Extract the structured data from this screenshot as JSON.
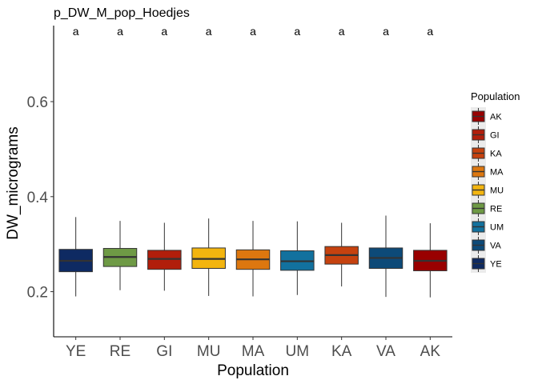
{
  "chart_data": {
    "type": "boxplot",
    "title": "p_DW_M_pop_Hoedjes",
    "xlabel": "Population",
    "ylabel": "DW_micrograms",
    "ylim": [
      0.105,
      0.76
    ],
    "yticks": [
      0.2,
      0.4,
      0.6
    ],
    "yticks_text": [
      "0.2",
      "0.4",
      "0.6"
    ],
    "grid": false,
    "legend": {
      "title": "Population",
      "placement": "right",
      "entries": [
        {
          "label": "AK",
          "color": "#990000"
        },
        {
          "label": "GI",
          "color": "#b11e0b"
        },
        {
          "label": "KA",
          "color": "#c6420f"
        },
        {
          "label": "MA",
          "color": "#dd770f"
        },
        {
          "label": "MU",
          "color": "#f3b50f"
        },
        {
          "label": "RE",
          "color": "#6e9a45"
        },
        {
          "label": "UM",
          "color": "#12719e"
        },
        {
          "label": "VA",
          "color": "#0d4a78"
        },
        {
          "label": "YE",
          "color": "#0e2a62"
        }
      ]
    },
    "categories": [
      "YE",
      "RE",
      "GI",
      "MU",
      "MA",
      "UM",
      "KA",
      "VA",
      "AK"
    ],
    "boxes": [
      {
        "category": "YE",
        "min": 0.19,
        "q1": 0.242,
        "median": 0.265,
        "q3": 0.289,
        "max": 0.357,
        "color": "#0e2a62",
        "letter": "a"
      },
      {
        "category": "RE",
        "min": 0.203,
        "q1": 0.253,
        "median": 0.273,
        "q3": 0.291,
        "max": 0.349,
        "color": "#6e9a45",
        "letter": "a"
      },
      {
        "category": "GI",
        "min": 0.202,
        "q1": 0.247,
        "median": 0.269,
        "q3": 0.287,
        "max": 0.345,
        "color": "#b11e0b",
        "letter": "a"
      },
      {
        "category": "MU",
        "min": 0.191,
        "q1": 0.249,
        "median": 0.269,
        "q3": 0.292,
        "max": 0.354,
        "color": "#f3b50f",
        "letter": "a"
      },
      {
        "category": "MA",
        "min": 0.19,
        "q1": 0.247,
        "median": 0.268,
        "q3": 0.288,
        "max": 0.349,
        "color": "#dd770f",
        "letter": "a"
      },
      {
        "category": "UM",
        "min": 0.193,
        "q1": 0.245,
        "median": 0.264,
        "q3": 0.286,
        "max": 0.348,
        "color": "#12719e",
        "letter": "a"
      },
      {
        "category": "KA",
        "min": 0.211,
        "q1": 0.258,
        "median": 0.277,
        "q3": 0.295,
        "max": 0.345,
        "color": "#c6420f",
        "letter": "a"
      },
      {
        "category": "VA",
        "min": 0.189,
        "q1": 0.249,
        "median": 0.271,
        "q3": 0.292,
        "max": 0.36,
        "color": "#0d4a78",
        "letter": "a"
      },
      {
        "category": "AK",
        "min": 0.188,
        "q1": 0.244,
        "median": 0.265,
        "q3": 0.287,
        "max": 0.344,
        "color": "#990000",
        "letter": "a"
      }
    ]
  }
}
